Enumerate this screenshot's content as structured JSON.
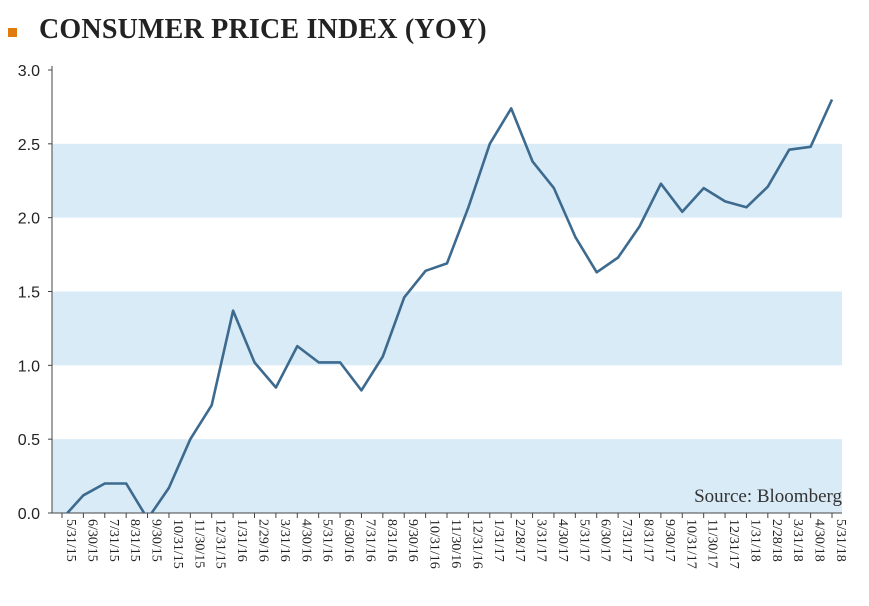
{
  "title": "CONSUMER PRICE INDEX (YOY)",
  "colors": {
    "bullet": "#e07b10",
    "line": "#3d6a8f",
    "band": "#d9ebf6",
    "axis": "#444444"
  },
  "chart_data": {
    "type": "line",
    "title": "CONSUMER PRICE INDEX (YOY)",
    "source": "Source: Bloomberg",
    "ylim": [
      0,
      3.0
    ],
    "yticks": [
      "0.0",
      "0.5",
      "1.0",
      "1.5",
      "2.0",
      "2.5",
      "3.0"
    ],
    "grid": "alternating horizontal bands",
    "categories": [
      "5/31/15",
      "6/30/15",
      "7/31/15",
      "8/31/15",
      "9/30/15",
      "10/31/15",
      "11/30/15",
      "12/31/15",
      "1/31/16",
      "2/29/16",
      "3/31/16",
      "4/30/16",
      "5/31/16",
      "6/30/16",
      "7/31/16",
      "8/31/16",
      "9/30/16",
      "10/31/16",
      "11/30/16",
      "12/31/16",
      "1/31/17",
      "2/28/17",
      "3/31/17",
      "4/30/17",
      "5/31/17",
      "6/30/17",
      "7/31/17",
      "8/31/17",
      "9/30/17",
      "10/31/17",
      "11/30/17",
      "12/31/17",
      "1/31/18",
      "2/28/18",
      "3/31/18",
      "4/30/18",
      "5/31/18"
    ],
    "series": [
      {
        "values": [
          -0.04,
          0.12,
          0.2,
          0.2,
          -0.04,
          0.17,
          0.5,
          0.73,
          1.37,
          1.02,
          0.85,
          1.13,
          1.02,
          1.02,
          0.83,
          1.06,
          1.46,
          1.64,
          1.69,
          2.07,
          2.5,
          2.74,
          2.38,
          2.2,
          1.87,
          1.63,
          1.73,
          1.94,
          2.23,
          2.04,
          2.2,
          2.11,
          2.07,
          2.21,
          2.46,
          2.48,
          2.8
        ]
      }
    ]
  }
}
